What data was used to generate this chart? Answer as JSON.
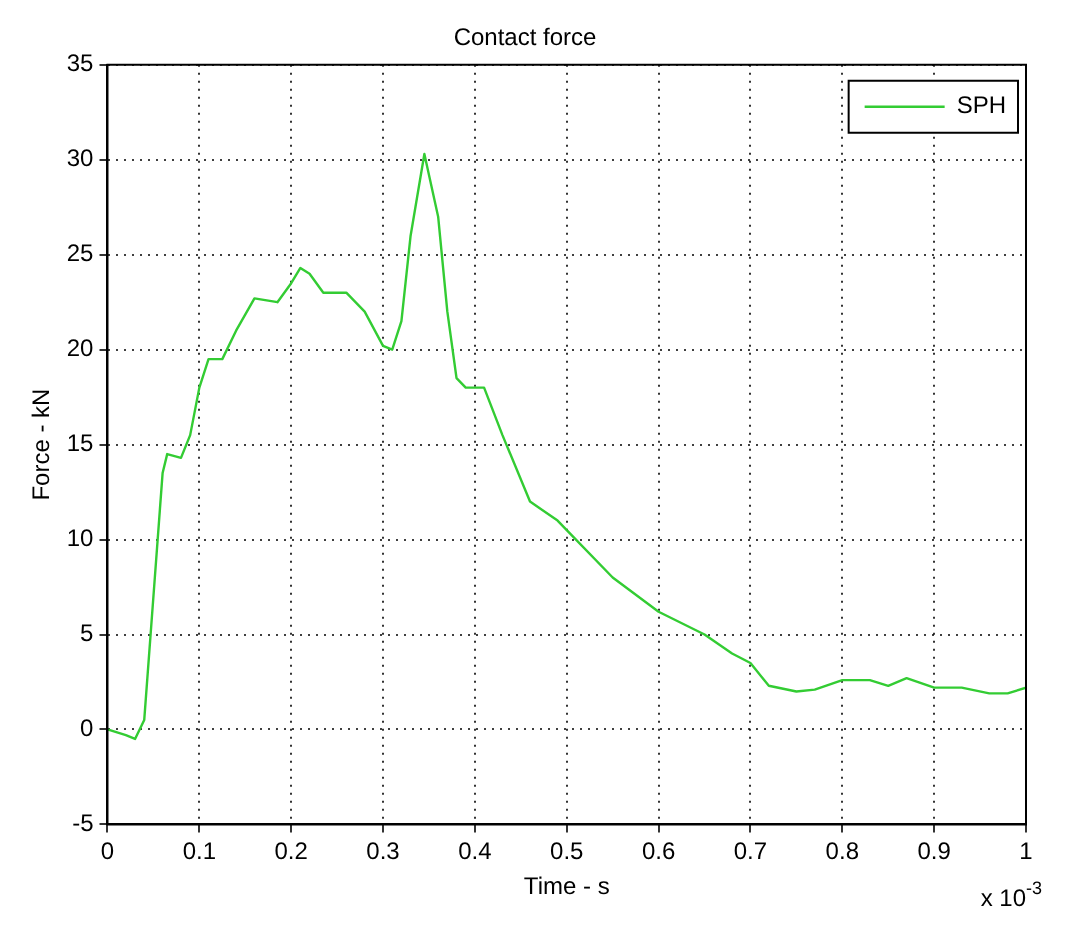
{
  "chart_data": {
    "type": "line",
    "title": "Contact force",
    "xlabel": "Time - s",
    "ylabel": "Force - kN",
    "annotations": [
      "x 10$^{-3}$"
    ],
    "x": [
      0,
      0.02,
      0.03,
      0.04,
      0.05,
      0.06,
      0.065,
      0.08,
      0.09,
      0.1,
      0.11,
      0.125,
      0.14,
      0.16,
      0.185,
      0.2,
      0.21,
      0.22,
      0.235,
      0.26,
      0.28,
      0.3,
      0.31,
      0.32,
      0.33,
      0.345,
      0.36,
      0.37,
      0.38,
      0.39,
      0.41,
      0.43,
      0.46,
      0.49,
      0.5,
      0.55,
      0.6,
      0.65,
      0.68,
      0.7,
      0.72,
      0.75,
      0.77,
      0.8,
      0.83,
      0.85,
      0.87,
      0.9,
      0.93,
      0.96,
      0.98,
      1
    ],
    "series": [
      {
        "name": "SPH",
        "color": "#33cc33",
        "values": [
          0,
          -0.3,
          -0.5,
          0.5,
          7,
          13.5,
          14.5,
          14.3,
          15.5,
          18,
          19.5,
          19.5,
          21,
          22.7,
          22.5,
          23.5,
          24.3,
          24,
          23,
          23,
          22,
          20.2,
          20,
          21.5,
          26,
          30.3,
          27,
          22,
          18.5,
          18,
          18,
          15.5,
          12,
          11,
          10.5,
          8,
          6.2,
          5,
          4,
          3.5,
          2.3,
          2,
          2.1,
          2.6,
          2.6,
          2.3,
          2.7,
          2.2,
          2.2,
          1.9,
          1.9,
          2.2
        ]
      }
    ],
    "xlim": [
      0,
      1
    ],
    "xticks": [
      0,
      0.1,
      0.2,
      0.3,
      0.4,
      0.5,
      0.6,
      0.7,
      0.8,
      0.9,
      1
    ],
    "ylim": [
      -5,
      35
    ],
    "yticks": [
      -5,
      0,
      5,
      10,
      15,
      20,
      25,
      30,
      35
    ],
    "grid": true,
    "legend": "top right",
    "marker": "none",
    "line_style": "solid"
  }
}
